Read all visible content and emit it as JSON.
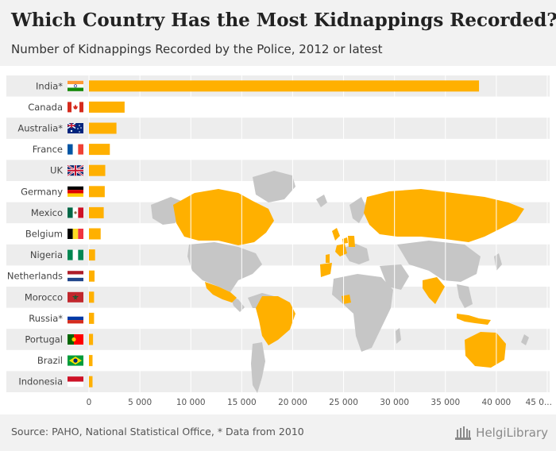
{
  "header": {
    "title": "Which Country Has the Most Kidnappings Recorded?",
    "subtitle": "Number of Kidnappings Recorded by the Police, 2012 or latest"
  },
  "footer": {
    "source": "Source: PAHO, National Statistical Office, * Data from 2010",
    "brand": "HelgiLibrary"
  },
  "colors": {
    "bar": "#ffb000",
    "map_highlight": "#ffb000",
    "map_base": "#c6c6c6",
    "band": "#ededed"
  },
  "chart_data": {
    "type": "bar",
    "orientation": "horizontal",
    "title": "Which Country Has the Most Kidnappings Recorded?",
    "subtitle": "Number of Kidnappings Recorded by the Police, 2012 or latest",
    "categories": [
      "India*",
      "Canada",
      "Australia*",
      "France",
      "UK",
      "Germany",
      "Mexico",
      "Belgium",
      "Nigeria",
      "Netherlands",
      "Morocco",
      "Russia*",
      "Portugal",
      "Brazil",
      "Indonesia"
    ],
    "values": [
      38300,
      3500,
      2700,
      2050,
      1600,
      1550,
      1450,
      1150,
      600,
      550,
      500,
      500,
      400,
      350,
      350
    ],
    "flags": [
      "india-flag",
      "canada-flag",
      "australia-flag",
      "france-flag",
      "uk-flag",
      "germany-flag",
      "mexico-flag",
      "belgium-flag",
      "nigeria-flag",
      "netherlands-flag",
      "morocco-flag",
      "russia-flag",
      "portugal-flag",
      "brazil-flag",
      "indonesia-flag"
    ],
    "xlim": [
      0,
      45000
    ],
    "xticks": [
      0,
      5000,
      10000,
      15000,
      20000,
      25000,
      30000,
      35000,
      40000,
      45000
    ],
    "xtick_labels": [
      "0",
      "5 000",
      "10 000",
      "15 000",
      "20 000",
      "25 000",
      "30 000",
      "35 000",
      "40 000",
      "45 0..."
    ],
    "xlabel": "",
    "ylabel": "",
    "grid": true,
    "background_map_highlighted": [
      "India",
      "Canada",
      "Australia",
      "France",
      "UK",
      "Germany",
      "Mexico",
      "Belgium",
      "Nigeria",
      "Netherlands",
      "Morocco",
      "Russia",
      "Portugal",
      "Brazil",
      "Indonesia"
    ]
  }
}
